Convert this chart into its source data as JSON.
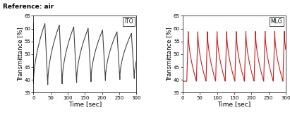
{
  "title": "Reference: air",
  "xlabel": "Time [sec]",
  "ylabel": "Transmittance [%]",
  "xlim": [
    0,
    300
  ],
  "ylim": [
    35,
    65
  ],
  "yticks": [
    35,
    40,
    45,
    50,
    55,
    60,
    65
  ],
  "xticks": [
    0,
    50,
    100,
    150,
    200,
    250,
    300
  ],
  "label_ito": "ITO",
  "label_mlg": "MLG",
  "color_ito": "#444444",
  "color_mlg": "#cc2222",
  "ito_period": 42,
  "ito_peak_start": 62.0,
  "ito_peak_end": 57.5,
  "ito_trough_start": 38.0,
  "ito_trough_end": 41.0,
  "mlg_period": 28,
  "mlg_peak": 59.0,
  "mlg_trough": 39.5,
  "background": "#f0f0f8",
  "title_fontsize": 6.5,
  "tick_fontsize": 5,
  "label_fontsize": 6,
  "xlabel_fontsize": 6.5
}
